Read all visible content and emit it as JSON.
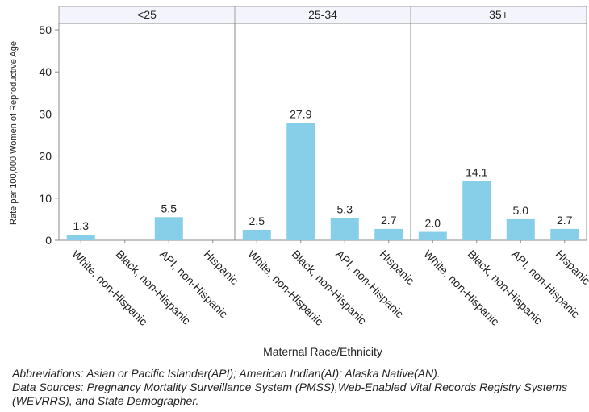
{
  "chart_data": {
    "type": "bar",
    "panels": [
      {
        "name": "<25",
        "categories": [
          "White, non-Hispanic",
          "Black, non-Hispanic",
          "API, non-Hispanic",
          "Hispanic"
        ],
        "values": [
          1.3,
          null,
          5.5,
          null
        ],
        "data_labels": [
          "1.3",
          "",
          "5.5",
          ""
        ]
      },
      {
        "name": "25-34",
        "categories": [
          "White, non-Hispanic",
          "Black, non-Hispanic",
          "API, non-Hispanic",
          "Hispanic"
        ],
        "values": [
          2.5,
          27.9,
          5.3,
          2.7
        ],
        "data_labels": [
          "2.5",
          "27.9",
          "5.3",
          "2.7"
        ]
      },
      {
        "name": "35+",
        "categories": [
          "White, non-Hispanic",
          "Black, non-Hispanic",
          "API, non-Hispanic",
          "Hispanic"
        ],
        "values": [
          2.0,
          14.1,
          5.0,
          2.7
        ],
        "data_labels": [
          "2.0",
          "14.1",
          "5.0",
          "2.7"
        ]
      }
    ],
    "xlabel": "Maternal Race/Ethnicity",
    "ylabel": "Rate per 100,000 Women of Reproductive Age",
    "ylim": [
      0,
      50
    ],
    "yticks": [
      0,
      10,
      20,
      30,
      40,
      50
    ],
    "grid": false,
    "bar_color": "#87cee8",
    "panel_header_color": "#f4f4fc"
  },
  "footnotes": {
    "abbreviations": "Abbreviations: Asian or Pacific Islander(API); American Indian(AI); Alaska Native(AN).",
    "sources": "Data Sources: Pregnancy Mortality Surveillance System (PMSS),Web-Enabled Vital Records Registry Systems (WEVRRS), and State Demographer."
  }
}
